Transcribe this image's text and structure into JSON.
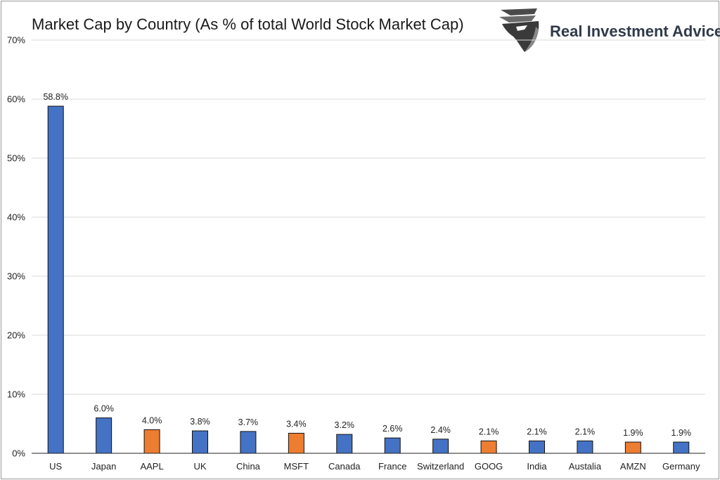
{
  "chart_data": {
    "type": "bar",
    "title": "Market Cap by Country (As % of total World Stock Market Cap)",
    "xlabel": "",
    "ylabel": "",
    "ylim": [
      0,
      70
    ],
    "y_ticks": [
      "0%",
      "10%",
      "20%",
      "30%",
      "40%",
      "50%",
      "60%",
      "70%"
    ],
    "grid": true,
    "categories": [
      "US",
      "Japan",
      "AAPL",
      "UK",
      "China",
      "MSFT",
      "Canada",
      "France",
      "Switzerland",
      "GOOG",
      "India",
      "Austalia",
      "AMZN",
      "Germany"
    ],
    "values": [
      58.8,
      6.0,
      4.0,
      3.8,
      3.7,
      3.4,
      3.2,
      2.6,
      2.4,
      2.1,
      2.1,
      2.1,
      1.9,
      1.9
    ],
    "data_labels": [
      "58.8%",
      "6.0%",
      "4.0%",
      "3.8%",
      "3.7%",
      "3.4%",
      "3.2%",
      "2.6%",
      "2.4%",
      "2.1%",
      "2.1%",
      "2.1%",
      "1.9%",
      "1.9%"
    ],
    "bar_kinds": [
      "country",
      "country",
      "company",
      "country",
      "country",
      "company",
      "country",
      "country",
      "country",
      "company",
      "country",
      "country",
      "company",
      "country"
    ],
    "colors": {
      "country": "#4472c4",
      "company": "#ed7d31",
      "grid": "#d9d9d9",
      "axis": "#222222"
    }
  },
  "brand": {
    "name": "Real Investment Advice",
    "logo_icon": "eagle-head-icon"
  }
}
